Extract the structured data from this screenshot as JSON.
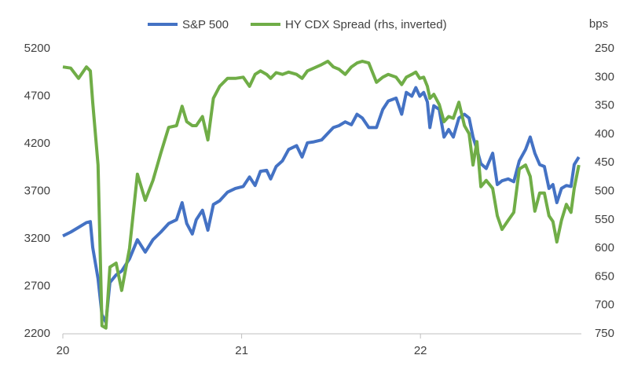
{
  "chart_data": {
    "type": "line",
    "y2label": "bps",
    "x": [
      2020.0,
      2020.044,
      2020.088,
      2020.132,
      2020.154,
      2020.167,
      2020.197,
      2020.219,
      2020.241,
      2020.263,
      2020.298,
      2020.329,
      2020.373,
      2020.417,
      2020.461,
      2020.504,
      2020.548,
      2020.592,
      2020.636,
      2020.667,
      2020.693,
      2020.724,
      2020.746,
      2020.781,
      2020.811,
      2020.842,
      2020.877,
      2020.921,
      2020.965,
      2021.009,
      2021.044,
      2021.075,
      2021.105,
      2021.14,
      2021.162,
      2021.193,
      2021.228,
      2021.263,
      2021.307,
      2021.338,
      2021.368,
      2021.404,
      2021.447,
      2021.482,
      2021.513,
      2021.544,
      2021.579,
      2021.614,
      2021.645,
      2021.675,
      2021.711,
      2021.754,
      2021.789,
      2021.82,
      2021.864,
      2021.895,
      2021.921,
      2021.952,
      2021.974,
      2021.996,
      2022.018,
      2022.039,
      2022.053,
      2022.075,
      2022.105,
      2022.132,
      2022.158,
      2022.184,
      2022.215,
      2022.246,
      2022.272,
      2022.294,
      2022.316,
      2022.338,
      2022.368,
      2022.404,
      2022.43,
      2022.456,
      2022.491,
      2022.522,
      2022.553,
      2022.588,
      2022.614,
      2022.64,
      2022.667,
      2022.693,
      2022.719,
      2022.741,
      2022.763,
      2022.789,
      2022.816,
      2022.842,
      2022.86,
      2022.886
    ],
    "series": [
      {
        "name": "S&P 500",
        "color": "#4472c4",
        "values": [
          3230,
          3270,
          3320,
          3370,
          3380,
          3110,
          2780,
          2400,
          2320,
          2740,
          2820,
          2860,
          2990,
          3190,
          3060,
          3190,
          3270,
          3360,
          3400,
          3580,
          3360,
          3250,
          3400,
          3500,
          3290,
          3560,
          3600,
          3690,
          3730,
          3750,
          3850,
          3760,
          3910,
          3920,
          3830,
          3960,
          4020,
          4140,
          4180,
          4060,
          4210,
          4220,
          4240,
          4310,
          4370,
          4390,
          4430,
          4400,
          4510,
          4470,
          4370,
          4370,
          4560,
          4650,
          4680,
          4510,
          4740,
          4700,
          4790,
          4700,
          4740,
          4640,
          4370,
          4600,
          4560,
          4270,
          4350,
          4270,
          4470,
          4510,
          4470,
          4270,
          4140,
          3990,
          3940,
          4100,
          3770,
          3810,
          3830,
          3800,
          4020,
          4140,
          4270,
          4100,
          3980,
          3960,
          3730,
          3770,
          3580,
          3730,
          3760,
          3750,
          3980,
          4060
        ]
      },
      {
        "name": "HY CDX Spread (rhs, inverted)",
        "color": "#70ad47",
        "axis": "y2",
        "values": [
          282,
          284,
          302,
          282,
          289,
          344,
          454,
          736,
          740,
          633,
          626,
          674,
          600,
          470,
          516,
          481,
          433,
          388,
          385,
          351,
          378,
          385,
          385,
          369,
          410,
          337,
          316,
          302,
          302,
          300,
          316,
          295,
          289,
          295,
          302,
          292,
          295,
          291,
          295,
          302,
          289,
          284,
          278,
          272,
          282,
          286,
          295,
          282,
          275,
          272,
          275,
          309,
          300,
          295,
          300,
          313,
          300,
          295,
          291,
          302,
          300,
          316,
          337,
          330,
          348,
          378,
          369,
          372,
          344,
          385,
          399,
          454,
          413,
          492,
          481,
          495,
          543,
          567,
          551,
          537,
          461,
          454,
          474,
          535,
          503,
          503,
          543,
          553,
          589,
          551,
          523,
          537,
          495,
          454
        ]
      }
    ],
    "xlim": [
      2020,
      2022.9
    ],
    "xticks": [
      {
        "value": 2020,
        "label": "20"
      },
      {
        "value": 2021,
        "label": "21"
      },
      {
        "value": 2022,
        "label": "22"
      }
    ],
    "ylim": [
      2200,
      5200
    ],
    "yticks": [
      2200,
      2700,
      3200,
      3700,
      4200,
      4700,
      5200
    ],
    "y2lim": [
      750,
      250
    ],
    "y2ticks": [
      250,
      300,
      350,
      400,
      450,
      500,
      550,
      600,
      650,
      700,
      750
    ],
    "legend": "top",
    "grid": false
  }
}
